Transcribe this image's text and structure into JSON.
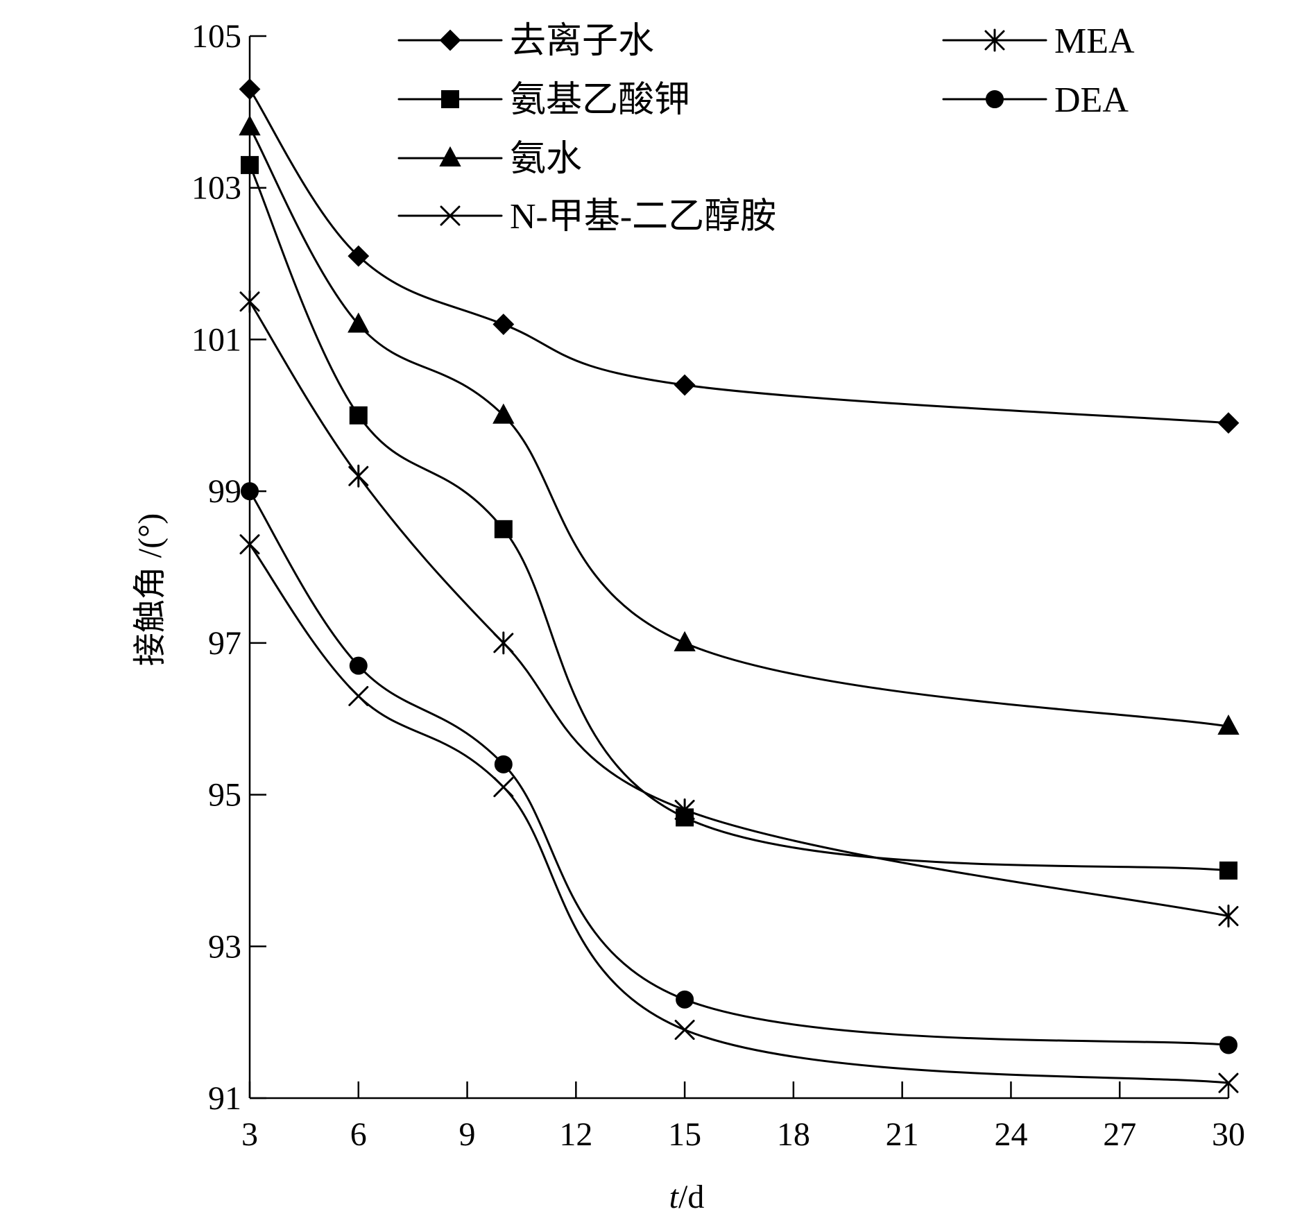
{
  "chart_data": {
    "type": "line",
    "title": "",
    "xlabel_italic": "t",
    "xlabel_rest": "/d",
    "ylabel": "接触角 /(°)",
    "xlim": [
      3,
      30
    ],
    "ylim": [
      91,
      105
    ],
    "xticks": [
      3,
      6,
      9,
      12,
      15,
      18,
      21,
      24,
      27,
      30
    ],
    "yticks": [
      91,
      93,
      95,
      97,
      99,
      101,
      103,
      105
    ],
    "xtick_labels": [
      "3",
      "6",
      "9",
      "12",
      "15",
      "18",
      "21",
      "24",
      "27",
      "30"
    ],
    "ytick_labels": [
      "91",
      "93",
      "95",
      "97",
      "99",
      "101",
      "103",
      "105"
    ],
    "grid": false,
    "legend_position": "top",
    "line_color": "#000000",
    "x": [
      3,
      6,
      10,
      15,
      30
    ],
    "series": [
      {
        "name": "去离子水",
        "marker": "diamond",
        "values": [
          104.3,
          102.1,
          101.2,
          100.4,
          99.9
        ]
      },
      {
        "name": "氨基乙酸钾",
        "marker": "square",
        "values": [
          103.3,
          100.0,
          98.5,
          94.7,
          94.0
        ]
      },
      {
        "name": "氨水",
        "marker": "triangle",
        "values": [
          103.8,
          101.2,
          100.0,
          97.0,
          95.9
        ]
      },
      {
        "name": "N-甲基-二乙醇胺",
        "marker": "x",
        "values": [
          98.3,
          96.3,
          95.1,
          91.9,
          91.2
        ]
      },
      {
        "name": "MEA",
        "marker": "asterisk",
        "values": [
          101.5,
          99.2,
          97.0,
          94.8,
          93.4
        ]
      },
      {
        "name": "DEA",
        "marker": "circle",
        "values": [
          99.0,
          96.7,
          95.4,
          92.3,
          91.7
        ]
      }
    ]
  }
}
